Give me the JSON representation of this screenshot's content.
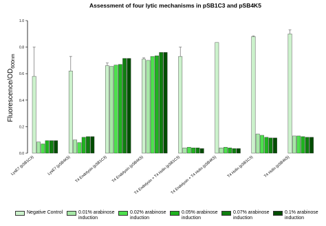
{
  "chart_data": {
    "type": "bar",
    "title": "Assessment of four lytic mechanisms in pSB1C3 and pSB4K5",
    "y_label": "Fluorescence/OD",
    "y_label_sub": "600nm",
    "categories": [
      "LysE7 (pSB1C3)",
      "LysE7 (pSB4K5)",
      "T4 Endolysin (pSB1C3)",
      "T4 Endolysin (pSB4K5)",
      "T4 Endolysin + T4 Holin (pSB1C3)",
      "T4 Endolysin + T4 Holin (pSB4K5)",
      "T4 Holin (pSB1C3)",
      "T4 Holin (pSB4K5)"
    ],
    "series": [
      {
        "name": "Negative Control",
        "color": "#ccf2cc",
        "values": [
          0.58,
          0.62,
          0.66,
          0.71,
          0.73,
          0.835,
          0.88,
          0.9
        ],
        "errors": [
          0.22,
          0.11,
          0.02,
          0.01,
          0.07,
          null,
          0.005,
          0.03
        ]
      },
      {
        "name": "0.01% arabinose induction",
        "color": "#a6e8a6",
        "values": [
          0.085,
          0.1,
          0.655,
          0.7,
          0.04,
          0.04,
          0.145,
          0.13
        ]
      },
      {
        "name": "0.02% arabinose induction",
        "color": "#4ee04e",
        "values": [
          0.07,
          0.08,
          0.665,
          0.73,
          0.045,
          0.045,
          0.135,
          0.13
        ]
      },
      {
        "name": "0.05% arabinose induction",
        "color": "#1fb21f",
        "values": [
          0.095,
          0.12,
          0.67,
          0.735,
          0.04,
          0.04,
          0.12,
          0.125
        ]
      },
      {
        "name": "0.07% arabinose induction",
        "color": "#0f7f0f",
        "values": [
          0.095,
          0.125,
          0.715,
          0.76,
          0.04,
          0.035,
          0.115,
          0.12
        ]
      },
      {
        "name": "0.1% arabinose induction",
        "color": "#004d00",
        "values": [
          0.095,
          0.125,
          0.715,
          0.76,
          0.035,
          0.035,
          0.115,
          0.12
        ]
      }
    ],
    "ylim": [
      0,
      1.0
    ],
    "yticks": [
      {
        "value": 0,
        "label": "0.0"
      },
      {
        "value": 0.2,
        "label": "0.2"
      },
      {
        "value": 0.4,
        "label": "0.4"
      },
      {
        "value": 0.6,
        "label": "0.6"
      },
      {
        "value": 0.8,
        "label": "0.8"
      },
      {
        "value": 1.0,
        "label": "1.0"
      }
    ]
  }
}
